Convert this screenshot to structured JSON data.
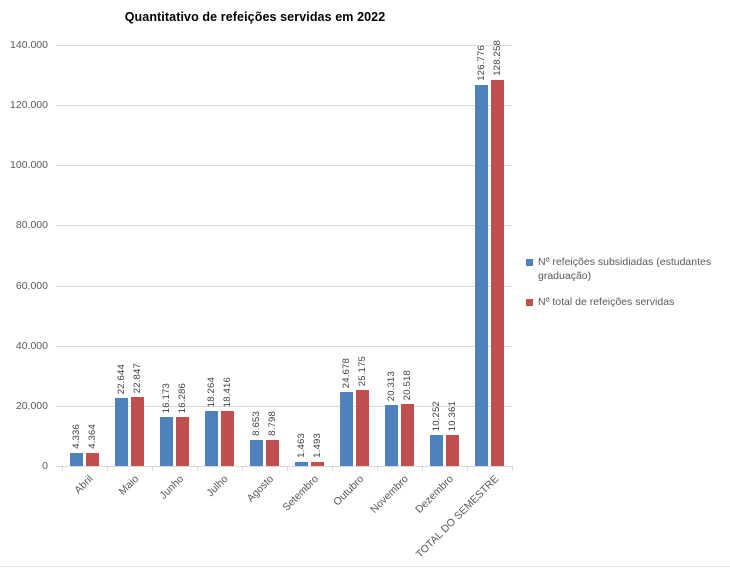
{
  "chart_data": {
    "type": "bar",
    "title": "Quantitativo de refeições servidas em 2022",
    "categories": [
      "Abril",
      "Maio",
      "Junho",
      "Julho",
      "Agosto",
      "Setembro",
      "Outubro",
      "Novembro",
      "Dezembro",
      "TOTAL DO SEMESTRE"
    ],
    "series": [
      {
        "name": "Nº refeições subsidiadas (estudantes graduação)",
        "color": "#4F81BD",
        "values": [
          4336,
          22644,
          16173,
          18264,
          8653,
          1463,
          24678,
          20313,
          10252,
          126776
        ],
        "labels": [
          "4.336",
          "22.644",
          "16.173",
          "18.264",
          "8.653",
          "1.463",
          "24.678",
          "20.313",
          "10.252",
          "126.776"
        ]
      },
      {
        "name": "Nº total de refeições servidas",
        "color": "#C0504D",
        "values": [
          4364,
          22847,
          16286,
          18416,
          8798,
          1493,
          25175,
          20518,
          10361,
          128258
        ],
        "labels": [
          "4.364",
          "22.847",
          "16.286",
          "18.416",
          "8.798",
          "1.493",
          "25.175",
          "20.518",
          "10.361",
          "128.258"
        ]
      }
    ],
    "ylim": [
      0,
      140000
    ],
    "ytick_step": 20000,
    "ytick_labels": [
      "0",
      "20.000",
      "40.000",
      "60.000",
      "80.000",
      "100.000",
      "120.000",
      "140.000"
    ],
    "xlabel": "",
    "ylabel": "",
    "grid": true,
    "legend_position": "right",
    "grid_color": "#D9D9D9",
    "axis_text_color": "#595959",
    "data_label_color": "#404040"
  }
}
